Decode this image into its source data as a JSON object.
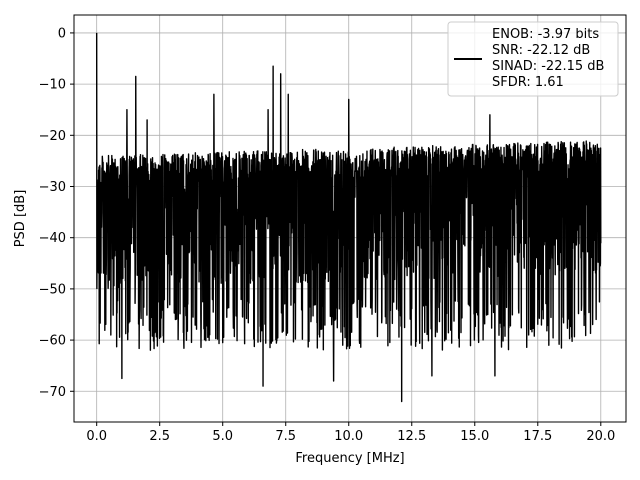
{
  "chart_data": {
    "type": "line",
    "xlabel": "Frequency [MHz]",
    "ylabel": "PSD [dB]",
    "xlim": [
      -0.9,
      21.0
    ],
    "ylim": [
      -76,
      3.5
    ],
    "xticks": [
      0.0,
      2.5,
      5.0,
      7.5,
      10.0,
      12.5,
      15.0,
      17.5,
      20.0
    ],
    "xtick_labels": [
      "0.0",
      "2.5",
      "5.0",
      "7.5",
      "10.0",
      "12.5",
      "15.0",
      "17.5",
      "20.0"
    ],
    "yticks": [
      0,
      -10,
      -20,
      -30,
      -40,
      -50,
      -60,
      -70
    ],
    "ytick_labels": [
      "0",
      "−10",
      "−20",
      "−30",
      "−40",
      "−50",
      "−60",
      "−70"
    ],
    "grid": true,
    "legend_position": "top-right",
    "legend_lines": [
      "ENOB: -3.97 bits",
      "SNR: -22.12 dB",
      "SINAD: -22.15 dB",
      "SFDR: 1.61"
    ],
    "series": [
      {
        "color": "#000000",
        "x_range": [
          0,
          20
        ],
        "noise_ceiling_at_start": -24,
        "noise_ceiling_at_end": -21,
        "noise_floor_typical": -52,
        "spurs": [
          {
            "x": 0.0,
            "y": 0
          },
          {
            "x": 1.55,
            "y": -8.5
          },
          {
            "x": 1.2,
            "y": -15
          },
          {
            "x": 2.0,
            "y": -17
          },
          {
            "x": 4.65,
            "y": -12
          },
          {
            "x": 6.8,
            "y": -15
          },
          {
            "x": 7.0,
            "y": -6.5
          },
          {
            "x": 7.3,
            "y": -8
          },
          {
            "x": 7.6,
            "y": -12
          },
          {
            "x": 10.0,
            "y": -13
          },
          {
            "x": 15.6,
            "y": -16
          }
        ],
        "minima": [
          {
            "x": 1.0,
            "y": -67.5
          },
          {
            "x": 6.6,
            "y": -69
          },
          {
            "x": 9.4,
            "y": -68
          },
          {
            "x": 12.1,
            "y": -72
          },
          {
            "x": 13.3,
            "y": -67
          },
          {
            "x": 15.8,
            "y": -67
          }
        ]
      }
    ]
  }
}
